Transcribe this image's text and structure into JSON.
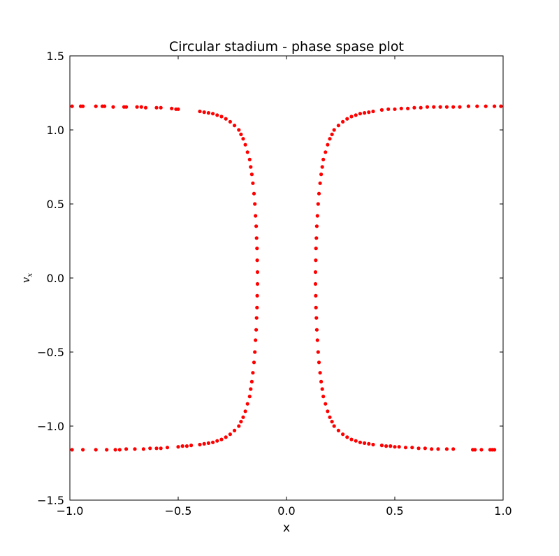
{
  "chart_data": {
    "type": "scatter",
    "title": "Circular stadium - phase spase plot",
    "xlabel": "x",
    "ylabel": "v",
    "ylabel_subscript": "x",
    "xlim": [
      -1.0,
      1.0
    ],
    "ylim": [
      -1.5,
      1.5
    ],
    "xticks": [
      -1.0,
      -0.5,
      0.0,
      0.5,
      1.0
    ],
    "xtick_labels": [
      "−1.0",
      "−0.5",
      "0.0",
      "0.5",
      "1.0"
    ],
    "yticks": [
      -1.5,
      -1.0,
      -0.5,
      0.0,
      0.5,
      1.0,
      1.5
    ],
    "ytick_labels": [
      "−1.5",
      "−1.0",
      "−0.5",
      "0.0",
      "0.5",
      "1.0",
      "1.5"
    ],
    "grid": false,
    "marker_color": "#ff0000",
    "series": [
      {
        "points": [
          [
            -0.99,
            1.16
          ],
          [
            -0.95,
            1.16
          ],
          [
            -0.94,
            1.16
          ],
          [
            -0.88,
            1.16
          ],
          [
            -0.85,
            1.16
          ],
          [
            -0.84,
            1.16
          ],
          [
            -0.8,
            1.155
          ],
          [
            -0.75,
            1.155
          ],
          [
            -0.74,
            1.155
          ],
          [
            -0.69,
            1.155
          ],
          [
            -0.67,
            1.155
          ],
          [
            -0.65,
            1.15
          ],
          [
            -0.6,
            1.15
          ],
          [
            -0.58,
            1.15
          ],
          [
            -0.53,
            1.145
          ],
          [
            -0.51,
            1.14
          ],
          [
            -0.5,
            1.14
          ],
          [
            -0.4,
            1.125
          ],
          [
            -0.38,
            1.12
          ],
          [
            -0.36,
            1.115
          ],
          [
            -0.34,
            1.11
          ],
          [
            -0.32,
            1.1
          ],
          [
            -0.3,
            1.09
          ],
          [
            -0.28,
            1.075
          ],
          [
            -0.26,
            1.055
          ],
          [
            -0.24,
            1.03
          ],
          [
            -0.22,
            1.0
          ],
          [
            -0.21,
            0.97
          ],
          [
            -0.2,
            0.94
          ],
          [
            -0.19,
            0.9
          ],
          [
            -0.18,
            0.85
          ],
          [
            -0.17,
            0.8
          ],
          [
            -0.165,
            0.75
          ],
          [
            -0.16,
            0.7
          ],
          [
            -0.155,
            0.64
          ],
          [
            -0.15,
            0.57
          ],
          [
            -0.146,
            0.5
          ],
          [
            -0.143,
            0.42
          ],
          [
            -0.14,
            0.35
          ],
          [
            -0.138,
            0.27
          ],
          [
            -0.136,
            0.2
          ],
          [
            -0.135,
            0.12
          ],
          [
            -0.134,
            0.04
          ],
          [
            -0.134,
            -0.04
          ],
          [
            -0.135,
            -0.12
          ],
          [
            -0.136,
            -0.2
          ],
          [
            -0.138,
            -0.27
          ],
          [
            -0.14,
            -0.35
          ],
          [
            -0.143,
            -0.42
          ],
          [
            -0.146,
            -0.5
          ],
          [
            -0.15,
            -0.57
          ],
          [
            -0.155,
            -0.64
          ],
          [
            -0.16,
            -0.7
          ],
          [
            -0.165,
            -0.75
          ],
          [
            -0.17,
            -0.8
          ],
          [
            -0.18,
            -0.85
          ],
          [
            -0.19,
            -0.9
          ],
          [
            -0.2,
            -0.94
          ],
          [
            -0.21,
            -0.97
          ],
          [
            -0.22,
            -1.0
          ],
          [
            -0.24,
            -1.03
          ],
          [
            -0.26,
            -1.055
          ],
          [
            -0.28,
            -1.075
          ],
          [
            -0.3,
            -1.09
          ],
          [
            -0.32,
            -1.1
          ],
          [
            -0.34,
            -1.11
          ],
          [
            -0.36,
            -1.115
          ],
          [
            -0.38,
            -1.12
          ],
          [
            -0.4,
            -1.125
          ],
          [
            -0.44,
            -1.13
          ],
          [
            -0.46,
            -1.135
          ],
          [
            -0.48,
            -1.135
          ],
          [
            -0.5,
            -1.14
          ],
          [
            -0.55,
            -1.145
          ],
          [
            -0.58,
            -1.15
          ],
          [
            -0.6,
            -1.15
          ],
          [
            -0.63,
            -1.15
          ],
          [
            -0.66,
            -1.155
          ],
          [
            -0.7,
            -1.155
          ],
          [
            -0.74,
            -1.155
          ],
          [
            -0.77,
            -1.16
          ],
          [
            -0.79,
            -1.16
          ],
          [
            -0.83,
            -1.16
          ],
          [
            -0.88,
            -1.16
          ],
          [
            -0.94,
            -1.16
          ],
          [
            -0.99,
            -1.16
          ],
          [
            0.99,
            1.16
          ],
          [
            0.96,
            1.16
          ],
          [
            0.92,
            1.16
          ],
          [
            0.88,
            1.16
          ],
          [
            0.84,
            1.16
          ],
          [
            0.8,
            1.155
          ],
          [
            0.77,
            1.155
          ],
          [
            0.74,
            1.155
          ],
          [
            0.71,
            1.155
          ],
          [
            0.68,
            1.155
          ],
          [
            0.65,
            1.155
          ],
          [
            0.62,
            1.15
          ],
          [
            0.59,
            1.15
          ],
          [
            0.56,
            1.145
          ],
          [
            0.53,
            1.145
          ],
          [
            0.5,
            1.14
          ],
          [
            0.47,
            1.14
          ],
          [
            0.44,
            1.135
          ],
          [
            0.4,
            1.125
          ],
          [
            0.38,
            1.12
          ],
          [
            0.36,
            1.115
          ],
          [
            0.34,
            1.11
          ],
          [
            0.32,
            1.1
          ],
          [
            0.3,
            1.09
          ],
          [
            0.28,
            1.075
          ],
          [
            0.26,
            1.055
          ],
          [
            0.24,
            1.03
          ],
          [
            0.22,
            1.0
          ],
          [
            0.21,
            0.97
          ],
          [
            0.2,
            0.94
          ],
          [
            0.19,
            0.9
          ],
          [
            0.18,
            0.85
          ],
          [
            0.17,
            0.8
          ],
          [
            0.165,
            0.75
          ],
          [
            0.16,
            0.7
          ],
          [
            0.155,
            0.64
          ],
          [
            0.15,
            0.57
          ],
          [
            0.146,
            0.5
          ],
          [
            0.143,
            0.42
          ],
          [
            0.14,
            0.35
          ],
          [
            0.138,
            0.27
          ],
          [
            0.136,
            0.2
          ],
          [
            0.135,
            0.12
          ],
          [
            0.134,
            0.04
          ],
          [
            0.134,
            -0.04
          ],
          [
            0.135,
            -0.12
          ],
          [
            0.136,
            -0.2
          ],
          [
            0.138,
            -0.27
          ],
          [
            0.14,
            -0.35
          ],
          [
            0.143,
            -0.42
          ],
          [
            0.146,
            -0.5
          ],
          [
            0.15,
            -0.57
          ],
          [
            0.155,
            -0.64
          ],
          [
            0.16,
            -0.7
          ],
          [
            0.165,
            -0.75
          ],
          [
            0.17,
            -0.8
          ],
          [
            0.18,
            -0.85
          ],
          [
            0.19,
            -0.9
          ],
          [
            0.2,
            -0.94
          ],
          [
            0.21,
            -0.97
          ],
          [
            0.22,
            -1.0
          ],
          [
            0.24,
            -1.03
          ],
          [
            0.26,
            -1.055
          ],
          [
            0.28,
            -1.075
          ],
          [
            0.3,
            -1.09
          ],
          [
            0.32,
            -1.1
          ],
          [
            0.34,
            -1.11
          ],
          [
            0.36,
            -1.115
          ],
          [
            0.38,
            -1.12
          ],
          [
            0.4,
            -1.125
          ],
          [
            0.44,
            -1.13
          ],
          [
            0.46,
            -1.135
          ],
          [
            0.48,
            -1.135
          ],
          [
            0.5,
            -1.14
          ],
          [
            0.52,
            -1.14
          ],
          [
            0.55,
            -1.145
          ],
          [
            0.58,
            -1.145
          ],
          [
            0.61,
            -1.15
          ],
          [
            0.64,
            -1.15
          ],
          [
            0.67,
            -1.155
          ],
          [
            0.7,
            -1.155
          ],
          [
            0.74,
            -1.155
          ],
          [
            0.77,
            -1.155
          ],
          [
            0.86,
            -1.16
          ],
          [
            0.87,
            -1.16
          ],
          [
            0.9,
            -1.16
          ],
          [
            0.94,
            -1.16
          ],
          [
            0.95,
            -1.16
          ],
          [
            0.96,
            -1.16
          ]
        ]
      }
    ]
  }
}
